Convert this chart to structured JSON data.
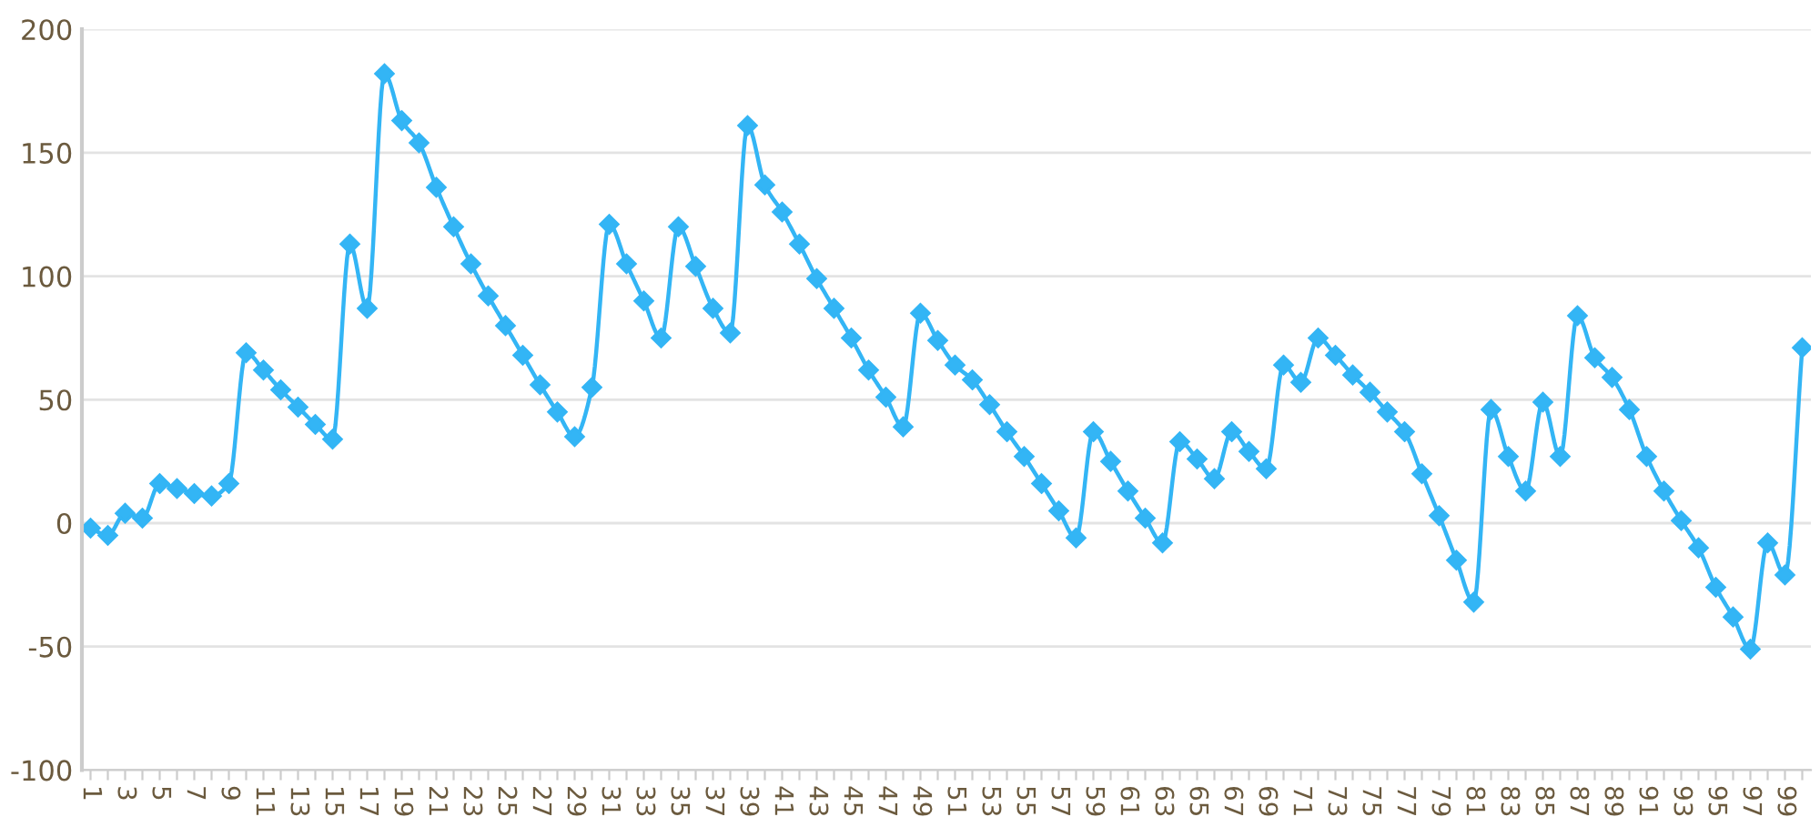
{
  "chart_data": {
    "type": "line",
    "categories": [
      "1",
      null,
      "3",
      null,
      "5",
      null,
      "7",
      null,
      "9",
      null,
      "11",
      null,
      "13",
      null,
      "15",
      null,
      "17",
      null,
      "19",
      null,
      "21",
      null,
      "23",
      null,
      "25",
      null,
      "27",
      null,
      "29",
      null,
      "31",
      null,
      "33",
      null,
      "35",
      null,
      "37",
      null,
      "39",
      null,
      "41",
      null,
      "43",
      null,
      "45",
      null,
      "47",
      null,
      "49",
      null,
      "51",
      null,
      "53",
      null,
      "55",
      null,
      "57",
      null,
      "59",
      null,
      "61",
      null,
      "63",
      null,
      "65",
      null,
      "67",
      null,
      "69",
      null,
      "71",
      null,
      "73",
      null,
      "75",
      null,
      "77",
      null,
      "79",
      null,
      "81",
      null,
      "83",
      null,
      "85",
      null,
      "87",
      null,
      "89",
      null,
      "91",
      null,
      "93",
      null,
      "95",
      null,
      "97",
      null,
      "99",
      null
    ],
    "series": [
      {
        "color": "#33b5f5",
        "values": [
          -2,
          -5,
          4,
          2,
          16,
          14,
          12,
          11,
          16,
          69,
          62,
          54,
          47,
          40,
          34,
          113,
          87,
          182,
          163,
          154,
          136,
          120,
          105,
          92,
          80,
          68,
          56,
          45,
          35,
          55,
          121,
          105,
          90,
          75,
          120,
          104,
          87,
          77,
          161,
          137,
          126,
          113,
          99,
          87,
          75,
          62,
          51,
          39,
          85,
          74,
          64,
          58,
          48,
          37,
          27,
          16,
          5,
          -6,
          37,
          25,
          13,
          2,
          -8,
          33,
          26,
          18,
          37,
          29,
          22,
          64,
          57,
          75,
          68,
          60,
          53,
          45,
          37,
          20,
          3,
          -15,
          -32,
          46,
          27,
          13,
          49,
          27,
          84,
          67,
          59,
          46,
          27,
          13,
          1,
          -10,
          -26,
          -38,
          -51,
          -8,
          -21,
          71
        ]
      }
    ],
    "ylim": [
      -100,
      200
    ],
    "yticks": [
      -100,
      -50,
      0,
      50,
      100,
      150,
      200
    ],
    "grid": "y",
    "legend": false,
    "marker": "diamond",
    "line_style": "solid"
  }
}
